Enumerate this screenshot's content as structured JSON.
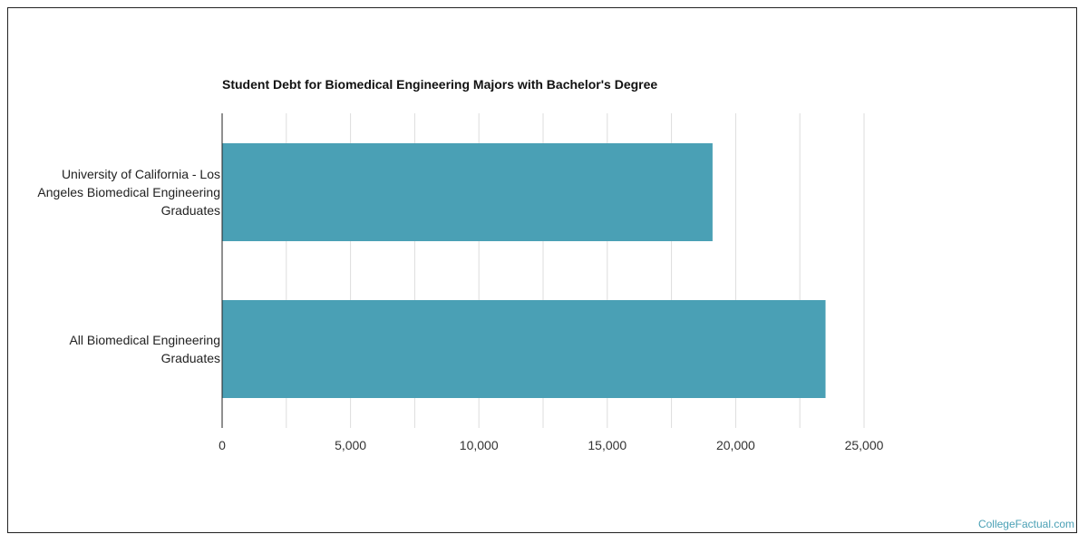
{
  "chart_data": {
    "type": "bar",
    "orientation": "horizontal",
    "title": "Student Debt for Biomedical Engineering Majors with Bachelor's Degree",
    "categories": [
      "University of California - Los Angeles Biomedical Engineering Graduates",
      "All Biomedical Engineering Graduates"
    ],
    "category_lines": [
      [
        "University of California - Los",
        "Angeles Biomedical Engineering",
        "Graduates"
      ],
      [
        "All Biomedical Engineering",
        "Graduates"
      ]
    ],
    "values": [
      19100,
      23500
    ],
    "xlim": [
      0,
      25000
    ],
    "xticks": [
      0,
      5000,
      10000,
      15000,
      20000,
      25000
    ],
    "xtick_labels": [
      "0",
      "5,000",
      "10,000",
      "15,000",
      "20,000",
      "25,000"
    ],
    "grid": true,
    "bar_color": "#4aa0b5"
  },
  "watermark": "CollegeFactual.com",
  "colors": {
    "bar": "#4aa0b5",
    "grid": "#dddddd",
    "axis": "#222222",
    "watermark": "#4aa0b5"
  }
}
